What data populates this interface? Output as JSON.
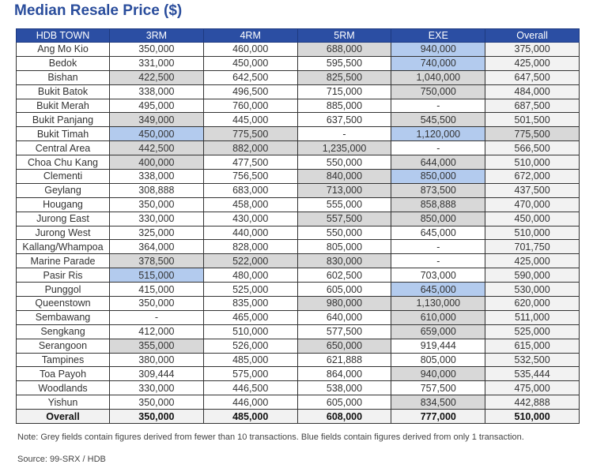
{
  "title": "Median Resale Price ($)",
  "columns": [
    "HDB TOWN",
    "3RM",
    "4RM",
    "5RM",
    "EXE",
    "Overall"
  ],
  "rows": [
    {
      "town": "Ang Mo Kio",
      "values": [
        "350,000",
        "460,000",
        "688,000",
        "940,000",
        "375,000"
      ],
      "shade": [
        "w",
        "w",
        "g",
        "b",
        "o"
      ]
    },
    {
      "town": "Bedok",
      "values": [
        "331,000",
        "450,000",
        "595,500",
        "740,000",
        "425,000"
      ],
      "shade": [
        "w",
        "w",
        "w",
        "b",
        "o"
      ]
    },
    {
      "town": "Bishan",
      "values": [
        "422,500",
        "642,500",
        "825,500",
        "1,040,000",
        "647,500"
      ],
      "shade": [
        "g",
        "w",
        "g",
        "g",
        "o"
      ]
    },
    {
      "town": "Bukit Batok",
      "values": [
        "338,000",
        "496,500",
        "715,000",
        "750,000",
        "484,000"
      ],
      "shade": [
        "w",
        "w",
        "w",
        "g",
        "o"
      ]
    },
    {
      "town": "Bukit Merah",
      "values": [
        "495,000",
        "760,000",
        "885,000",
        "-",
        "687,500"
      ],
      "shade": [
        "w",
        "w",
        "w",
        "w",
        "o"
      ]
    },
    {
      "town": "Bukit Panjang",
      "values": [
        "349,000",
        "445,000",
        "637,500",
        "545,500",
        "501,500"
      ],
      "shade": [
        "g",
        "w",
        "w",
        "g",
        "o"
      ]
    },
    {
      "town": "Bukit Timah",
      "values": [
        "450,000",
        "775,500",
        "-",
        "1,120,000",
        "775,500"
      ],
      "shade": [
        "b",
        "g",
        "w",
        "b",
        "g"
      ]
    },
    {
      "town": "Central Area",
      "values": [
        "442,500",
        "882,000",
        "1,235,000",
        "-",
        "566,500"
      ],
      "shade": [
        "g",
        "g",
        "g",
        "w",
        "o"
      ]
    },
    {
      "town": "Choa Chu Kang",
      "values": [
        "400,000",
        "477,500",
        "550,000",
        "644,000",
        "510,000"
      ],
      "shade": [
        "g",
        "w",
        "w",
        "g",
        "o"
      ]
    },
    {
      "town": "Clementi",
      "values": [
        "338,000",
        "756,500",
        "840,000",
        "850,000",
        "672,000"
      ],
      "shade": [
        "w",
        "w",
        "g",
        "b",
        "o"
      ]
    },
    {
      "town": "Geylang",
      "values": [
        "308,888",
        "683,000",
        "713,000",
        "873,500",
        "437,500"
      ],
      "shade": [
        "w",
        "w",
        "g",
        "g",
        "o"
      ]
    },
    {
      "town": "Hougang",
      "values": [
        "350,000",
        "458,000",
        "555,000",
        "858,888",
        "470,000"
      ],
      "shade": [
        "w",
        "w",
        "w",
        "g",
        "o"
      ]
    },
    {
      "town": "Jurong East",
      "values": [
        "330,000",
        "430,000",
        "557,500",
        "850,000",
        "450,000"
      ],
      "shade": [
        "w",
        "w",
        "g",
        "g",
        "o"
      ]
    },
    {
      "town": "Jurong West",
      "values": [
        "325,000",
        "440,000",
        "550,000",
        "645,000",
        "510,000"
      ],
      "shade": [
        "w",
        "w",
        "w",
        "w",
        "o"
      ]
    },
    {
      "town": "Kallang/Whampoa",
      "values": [
        "364,000",
        "828,000",
        "805,000",
        "-",
        "701,750"
      ],
      "shade": [
        "w",
        "w",
        "w",
        "w",
        "o"
      ]
    },
    {
      "town": "Marine Parade",
      "values": [
        "378,500",
        "522,000",
        "830,000",
        "-",
        "425,000"
      ],
      "shade": [
        "g",
        "g",
        "g",
        "w",
        "o"
      ]
    },
    {
      "town": "Pasir Ris",
      "values": [
        "515,000",
        "480,000",
        "602,500",
        "703,000",
        "590,000"
      ],
      "shade": [
        "b",
        "w",
        "w",
        "w",
        "o"
      ]
    },
    {
      "town": "Punggol",
      "values": [
        "415,000",
        "525,000",
        "605,000",
        "645,000",
        "530,000"
      ],
      "shade": [
        "w",
        "w",
        "w",
        "b",
        "o"
      ]
    },
    {
      "town": "Queenstown",
      "values": [
        "350,000",
        "835,000",
        "980,000",
        "1,130,000",
        "620,000"
      ],
      "shade": [
        "w",
        "w",
        "g",
        "g",
        "o"
      ]
    },
    {
      "town": "Sembawang",
      "values": [
        "-",
        "465,000",
        "640,000",
        "610,000",
        "511,000"
      ],
      "shade": [
        "w",
        "w",
        "w",
        "g",
        "o"
      ]
    },
    {
      "town": "Sengkang",
      "values": [
        "412,000",
        "510,000",
        "577,500",
        "659,000",
        "525,000"
      ],
      "shade": [
        "w",
        "w",
        "w",
        "g",
        "o"
      ]
    },
    {
      "town": "Serangoon",
      "values": [
        "355,000",
        "526,000",
        "650,000",
        "919,444",
        "615,000"
      ],
      "shade": [
        "g",
        "w",
        "g",
        "w",
        "o"
      ]
    },
    {
      "town": "Tampines",
      "values": [
        "380,000",
        "485,000",
        "621,888",
        "805,000",
        "532,500"
      ],
      "shade": [
        "w",
        "w",
        "w",
        "w",
        "o"
      ]
    },
    {
      "town": "Toa Payoh",
      "values": [
        "309,444",
        "575,000",
        "864,000",
        "940,000",
        "535,444"
      ],
      "shade": [
        "w",
        "w",
        "w",
        "g",
        "o"
      ]
    },
    {
      "town": "Woodlands",
      "values": [
        "330,000",
        "446,500",
        "538,000",
        "757,500",
        "475,000"
      ],
      "shade": [
        "w",
        "w",
        "w",
        "w",
        "o"
      ]
    },
    {
      "town": "Yishun",
      "values": [
        "350,000",
        "446,000",
        "605,000",
        "834,500",
        "442,888"
      ],
      "shade": [
        "w",
        "w",
        "w",
        "g",
        "o"
      ]
    }
  ],
  "total": {
    "town": "Overall",
    "values": [
      "350,000",
      "485,000",
      "608,000",
      "777,000",
      "510,000"
    ]
  },
  "colors": {
    "header": "#2b4ea3",
    "grey": "#d8d8d8",
    "blue": "#b3cbee",
    "title": "#2a4d9c"
  },
  "note": "Note: Grey fields contain figures derived from fewer than 10 transactions. Blue fields contain figures derived from only 1 transaction.",
  "source": "Source: 99-SRX / HDB"
}
